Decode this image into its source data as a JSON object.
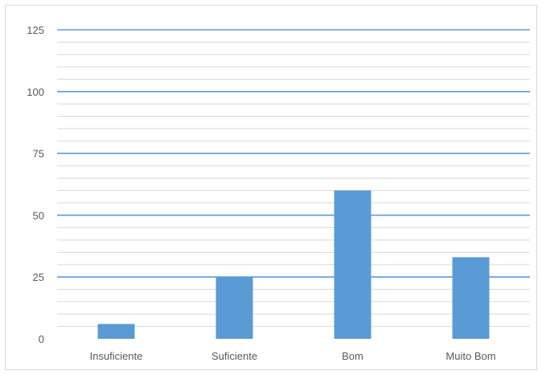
{
  "chart_data": {
    "type": "bar",
    "categories": [
      "Insuficiente",
      "Suficiente",
      "Bom",
      "Muito Bom"
    ],
    "values": [
      6,
      25,
      60,
      33
    ],
    "ylim": [
      0,
      125
    ],
    "major_ticks": [
      "0",
      "25",
      "50",
      "75",
      "100",
      "125"
    ],
    "minor_gridlines": true,
    "colors": {
      "bar": "#5b9bd5",
      "major_grid": "#5b9bd5",
      "minor_grid": "#d9d9d9"
    }
  }
}
